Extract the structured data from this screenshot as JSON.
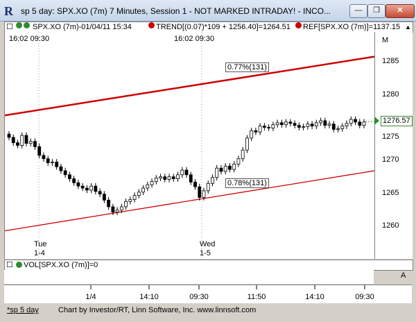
{
  "window": {
    "logo": "R",
    "title": "sp 5 day: SPX.XO (7m) 7 Minutes, Session 1 - NOT MARKED INTRADAY! - INCO...",
    "minimize": "—",
    "restore": "❐",
    "close": "✕"
  },
  "infobar": {
    "box_glyph": "☐",
    "symbol_text": "SPX.XO (7m)-01/04/11 15:34",
    "trend_text": "TREND[(0.07)*109 + 1256.40]=1264.51",
    "ref_text": "REF[SPX.XO (7m)]=1137.15",
    "scroll_up": "▲"
  },
  "chart": {
    "session_labels": [
      {
        "text": "16:02   09:30",
        "pos": "left"
      },
      {
        "text": "16:02   09:30",
        "pos": "mid"
      }
    ],
    "day_labels": [
      {
        "day": "Tue",
        "date": "1-4"
      },
      {
        "day": "Wed",
        "date": "1-5"
      }
    ],
    "trend_labels": [
      "0.77%(131)",
      "0.78%(131)"
    ],
    "axis_marker": "M",
    "current_price": "1276.57",
    "price_ticks": [
      "1285",
      "1280",
      "1275",
      "1270",
      "1265",
      "1260"
    ],
    "colors": {
      "trend": "#cc0000",
      "candle": "#000000",
      "price_tag": "#2e8b2e"
    }
  },
  "chart_data": {
    "type": "candlestick",
    "ylim": [
      1256,
      1290
    ],
    "y_ticks": [
      1260,
      1265,
      1270,
      1275,
      1280,
      1285
    ],
    "x_ticks": [
      "1/4",
      "14:10",
      "09:30",
      "11:50",
      "14:10",
      "09:30"
    ],
    "last_price": 1276.57,
    "trend_lines": [
      {
        "label": "0.77%(131)",
        "start": 1277.5,
        "end": 1286.3
      },
      {
        "label": "0.78%(131)",
        "start": 1260.2,
        "end": 1269.2
      }
    ],
    "closes": [
      1274.2,
      1273.4,
      1273.0,
      1274.5,
      1273.3,
      1273.6,
      1272.8,
      1271.5,
      1271.0,
      1270.4,
      1270.5,
      1269.8,
      1269.2,
      1268.6,
      1268.0,
      1267.4,
      1266.9,
      1266.6,
      1266.3,
      1266.9,
      1266.1,
      1265.7,
      1264.8,
      1263.8,
      1263.0,
      1263.3,
      1263.8,
      1264.6,
      1264.9,
      1265.5,
      1266.0,
      1266.6,
      1267.1,
      1267.6,
      1268.1,
      1268.3,
      1267.9,
      1268.3,
      1268.0,
      1268.6,
      1269.3,
      1268.6,
      1267.5,
      1266.8,
      1265.2,
      1266.2,
      1267.3,
      1268.2,
      1269.6,
      1269.1,
      1269.9,
      1269.4,
      1270.2,
      1271.0,
      1272.3,
      1274.1,
      1275.2,
      1275.0,
      1275.9,
      1275.7,
      1275.6,
      1276.1,
      1276.4,
      1276.1,
      1276.5,
      1276.3,
      1276.0,
      1275.7,
      1275.8,
      1276.2,
      1275.9,
      1276.4,
      1276.7,
      1276.0,
      1276.2,
      1275.4,
      1275.5,
      1275.9,
      1276.3,
      1276.9,
      1276.5,
      1276.0,
      1276.5
    ]
  },
  "vol": {
    "box_glyph": "☐",
    "label": "VOL[SPX.XO (7m)]=0",
    "marker": "A"
  },
  "status": {
    "tab": "*sp 5 day",
    "credit": "Chart by Investor/RT, Linn Software, Inc. www.linnsoft.com"
  }
}
